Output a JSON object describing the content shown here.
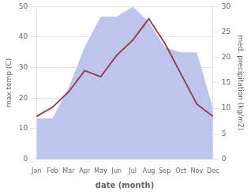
{
  "chart_data": {
    "type": "line",
    "xlabel": "date (month)",
    "ylabel": "max temp (C)",
    "y2label": "med. precipitation (kg/m2)",
    "categories": [
      "Jan",
      "Feb",
      "Mar",
      "Apr",
      "May",
      "Jun",
      "Jul",
      "Aug",
      "Sep",
      "Oct",
      "Nov",
      "Dec"
    ],
    "series": [
      {
        "type": "area",
        "axis": "y2",
        "color": "#bdc5ec",
        "values": [
          8,
          8,
          14,
          22,
          28,
          28,
          30,
          27,
          22,
          21,
          21,
          10
        ]
      },
      {
        "type": "line",
        "color": "#993344",
        "values": [
          14,
          17,
          22,
          29,
          27,
          34,
          39,
          46,
          38,
          28,
          18,
          14
        ]
      }
    ],
    "ylim": [
      0,
      50
    ],
    "yticks": [
      0,
      10,
      20,
      30,
      40,
      50
    ],
    "y2lim": [
      0,
      30
    ],
    "y2ticks": [
      0,
      5,
      10,
      15,
      20,
      25,
      30
    ],
    "grid": true
  }
}
